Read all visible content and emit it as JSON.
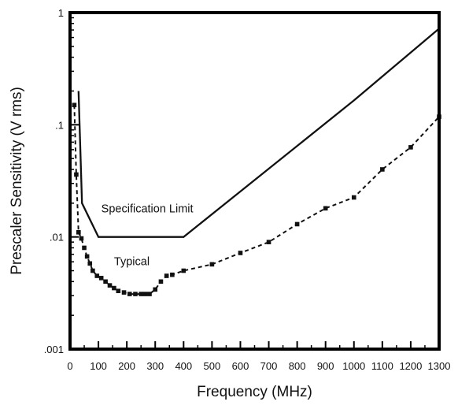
{
  "chart_data": {
    "type": "line",
    "title": "",
    "xlabel": "Frequency (MHz)",
    "ylabel": "Prescaler Sensitivity (V rms)",
    "xlim": [
      0,
      1300
    ],
    "ylim": [
      0.001,
      1
    ],
    "yscale": "log",
    "x_ticks": [
      0,
      100,
      200,
      300,
      400,
      500,
      600,
      700,
      800,
      900,
      1000,
      1100,
      1200,
      1300
    ],
    "x_tick_labels": [
      "0",
      "100",
      "200",
      "300",
      "400",
      "500",
      "600",
      "700",
      "800",
      "900",
      "1000",
      "1100",
      "1200",
      "1300"
    ],
    "y_ticks": [
      0.001,
      0.01,
      0.1,
      1
    ],
    "y_tick_labels": [
      ".001",
      ".01",
      ".1",
      "1"
    ],
    "grid": false,
    "legend": "none",
    "series": [
      {
        "name": "Specification Limit",
        "style": "solid",
        "color": "#111111",
        "markers": false,
        "points": [
          [
            30,
            0.2
          ],
          [
            42,
            0.02
          ],
          [
            100,
            0.01
          ],
          [
            400,
            0.01
          ],
          [
            1000,
            0.165
          ],
          [
            1300,
            0.72
          ]
        ]
      },
      {
        "name": "Typical",
        "style": "dashed",
        "color": "#111111",
        "markers": true,
        "points": [
          [
            15,
            0.15
          ],
          [
            22,
            0.036
          ],
          [
            30,
            0.011
          ],
          [
            40,
            0.0097
          ],
          [
            50,
            0.008
          ],
          [
            60,
            0.0067
          ],
          [
            70,
            0.0058
          ],
          [
            80,
            0.005
          ],
          [
            95,
            0.0045
          ],
          [
            110,
            0.0043
          ],
          [
            125,
            0.004
          ],
          [
            140,
            0.0037
          ],
          [
            155,
            0.0035
          ],
          [
            170,
            0.0033
          ],
          [
            190,
            0.0032
          ],
          [
            210,
            0.0031
          ],
          [
            230,
            0.0031
          ],
          [
            250,
            0.0031
          ],
          [
            265,
            0.0031
          ],
          [
            280,
            0.0031
          ],
          [
            300,
            0.0034
          ],
          [
            320,
            0.004
          ],
          [
            340,
            0.0045
          ],
          [
            360,
            0.0046
          ],
          [
            400,
            0.005
          ],
          [
            500,
            0.0057
          ],
          [
            600,
            0.0072
          ],
          [
            700,
            0.009
          ],
          [
            800,
            0.013
          ],
          [
            900,
            0.018
          ],
          [
            1000,
            0.0225
          ],
          [
            1100,
            0.04
          ],
          [
            1200,
            0.063
          ],
          [
            1300,
            0.118
          ]
        ]
      }
    ],
    "annotations": [
      {
        "text": "Specification Limit",
        "x": 110,
        "y": 0.0165
      },
      {
        "text": "Typical",
        "x": 155,
        "y": 0.0056
      }
    ]
  }
}
